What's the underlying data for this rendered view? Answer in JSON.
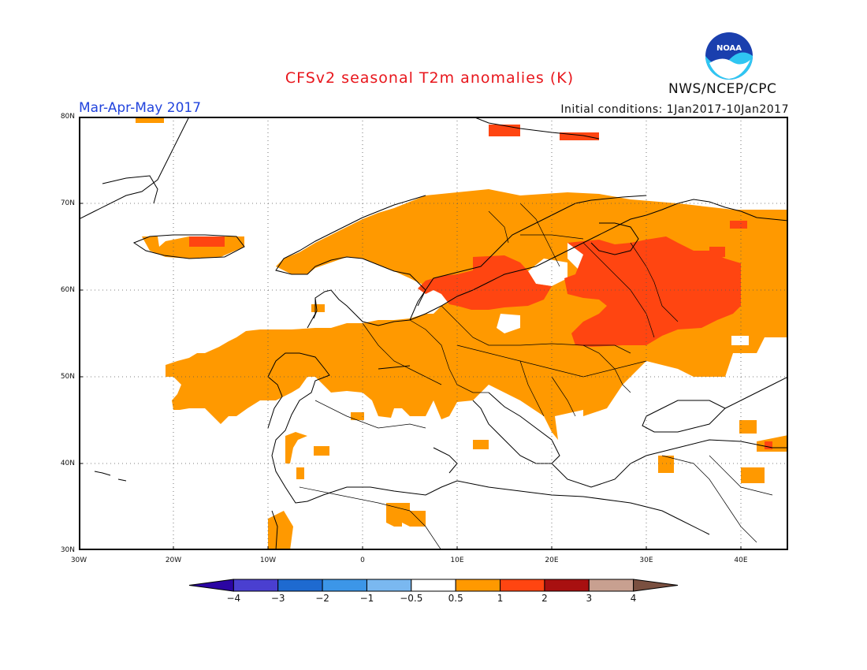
{
  "title": "CFSv2 seasonal T2m anomalies (K)",
  "season": "Mar-Apr-May 2017",
  "initial_conditions": "Initial conditions: 1Jan2017-10Jan2017",
  "agency": "NWS/NCEP/CPC",
  "logo_text": "NOAA",
  "map": {
    "lon_range": [
      -30,
      45
    ],
    "lat_range": [
      30,
      80
    ],
    "lat_labels": [
      "80N",
      "70N",
      "60N",
      "50N",
      "40N",
      "30N"
    ],
    "lon_labels": [
      "30W",
      "20W",
      "10W",
      "0",
      "10E",
      "20E",
      "30E",
      "40E"
    ],
    "grid": "dotted"
  },
  "colorbar": {
    "labels": [
      "-4",
      "-3",
      "-2",
      "-1",
      "-0.5",
      "0.5",
      "1",
      "2",
      "3",
      "4"
    ],
    "colors": [
      "#2b05a3",
      "#4a3fd0",
      "#1e6ad0",
      "#3c96e8",
      "#7ab8f0",
      "#ffffff",
      "#ff9900",
      "#ff4511",
      "#a81010",
      "#c8a090",
      "#7a5040"
    ]
  },
  "anomaly_regions": {
    "orange": "#ff9900",
    "red": "#ff4511"
  }
}
